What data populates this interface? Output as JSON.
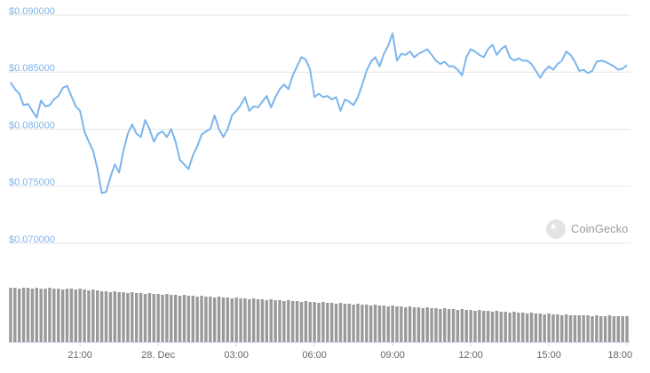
{
  "chart_data": {
    "type": "line",
    "color": "#7cb5ec",
    "volume_color": "#9a9a9a",
    "grid": true,
    "watermark": "CoinGecko",
    "xlim": [
      -344,
      1088
    ],
    "xticks": [
      {
        "value": -180,
        "label": "21:00"
      },
      {
        "value": 0,
        "label": "28. Dec"
      },
      {
        "value": 180,
        "label": "03:00"
      },
      {
        "value": 360,
        "label": "06:00"
      },
      {
        "value": 540,
        "label": "09:00"
      },
      {
        "value": 720,
        "label": "12:00"
      },
      {
        "value": 900,
        "label": "15:00"
      },
      {
        "value": 1080,
        "label": "18:00"
      }
    ],
    "ylim": [
      0.07,
      0.09
    ],
    "yticks": [
      {
        "value": 0.09,
        "label": "$0.090000"
      },
      {
        "value": 0.085,
        "label": "$0.085000"
      },
      {
        "value": 0.08,
        "label": "$0.080000"
      },
      {
        "value": 0.075,
        "label": "$0.075000"
      },
      {
        "value": 0.07,
        "label": "$0.070000"
      }
    ],
    "x": [
      -340,
      -330,
      -320,
      -310,
      -300,
      -290,
      -280,
      -270,
      -260,
      -250,
      -240,
      -230,
      -220,
      -210,
      -200,
      -190,
      -180,
      -170,
      -160,
      -150,
      -140,
      -130,
      -120,
      -110,
      -100,
      -90,
      -80,
      -70,
      -60,
      -50,
      -40,
      -30,
      -20,
      -10,
      0,
      10,
      20,
      30,
      40,
      50,
      60,
      70,
      80,
      90,
      100,
      110,
      120,
      130,
      140,
      150,
      160,
      170,
      180,
      190,
      200,
      210,
      220,
      230,
      240,
      250,
      260,
      270,
      280,
      290,
      300,
      310,
      320,
      330,
      340,
      350,
      360,
      370,
      380,
      390,
      400,
      410,
      420,
      430,
      440,
      450,
      460,
      470,
      480,
      490,
      500,
      510,
      520,
      530,
      540,
      550,
      560,
      570,
      580,
      590,
      600,
      610,
      620,
      630,
      640,
      650,
      660,
      670,
      680,
      690,
      700,
      710,
      720,
      730,
      740,
      750,
      760,
      770,
      780,
      790,
      800,
      810,
      820,
      830,
      840,
      850,
      860,
      870,
      880,
      890,
      900,
      910,
      920,
      930,
      940,
      950,
      960,
      970,
      980,
      990,
      1000,
      1010,
      1020,
      1030,
      1040,
      1050,
      1060,
      1070,
      1080
    ],
    "values": [
      0.0838,
      0.0832,
      0.0828,
      0.0818,
      0.0819,
      0.0813,
      0.0807,
      0.0822,
      0.0817,
      0.0818,
      0.0823,
      0.0826,
      0.0833,
      0.0835,
      0.0826,
      0.0817,
      0.0813,
      0.0795,
      0.0786,
      0.0778,
      0.0762,
      0.0741,
      0.0742,
      0.0755,
      0.0766,
      0.0759,
      0.0778,
      0.0793,
      0.0801,
      0.0793,
      0.079,
      0.0805,
      0.0797,
      0.0786,
      0.0793,
      0.0795,
      0.079,
      0.0797,
      0.0786,
      0.077,
      0.0766,
      0.0762,
      0.0774,
      0.0782,
      0.0792,
      0.0795,
      0.0797,
      0.0809,
      0.0797,
      0.079,
      0.0797,
      0.0809,
      0.0813,
      0.0818,
      0.0825,
      0.0813,
      0.0817,
      0.0816,
      0.0821,
      0.0826,
      0.0816,
      0.0825,
      0.0832,
      0.0836,
      0.0832,
      0.0844,
      0.0852,
      0.086,
      0.0858,
      0.0849,
      0.0825,
      0.0828,
      0.0825,
      0.0826,
      0.0823,
      0.0825,
      0.0813,
      0.0823,
      0.0821,
      0.0818,
      0.0825,
      0.0836,
      0.0848,
      0.0856,
      0.086,
      0.0852,
      0.0863,
      0.087,
      0.0881,
      0.0857,
      0.0863,
      0.0862,
      0.0865,
      0.086,
      0.0863,
      0.0865,
      0.0867,
      0.0862,
      0.0857,
      0.0854,
      0.0856,
      0.0852,
      0.0852,
      0.0849,
      0.0844,
      0.086,
      0.0867,
      0.0865,
      0.0862,
      0.086,
      0.0867,
      0.0871,
      0.0862,
      0.0867,
      0.087,
      0.086,
      0.0857,
      0.0859,
      0.0857,
      0.0857,
      0.0854,
      0.0848,
      0.0842,
      0.0848,
      0.0852,
      0.0849,
      0.0854,
      0.0857,
      0.0865,
      0.0862,
      0.0856,
      0.0848,
      0.0849,
      0.0846,
      0.0848,
      0.0856,
      0.0857,
      0.0856,
      0.0854,
      0.0852,
      0.0849,
      0.085,
      0.0853
    ],
    "volume": [
      61,
      61,
      60,
      61,
      61,
      60,
      61,
      60,
      60,
      61,
      60,
      60,
      59,
      60,
      60,
      59,
      60,
      59,
      58,
      59,
      58,
      57,
      57,
      56,
      57,
      56,
      56,
      55,
      56,
      55,
      55,
      54,
      55,
      54,
      54,
      53,
      54,
      53,
      53,
      52,
      53,
      52,
      52,
      51,
      52,
      51,
      51,
      50,
      51,
      50,
      50,
      49,
      50,
      49,
      49,
      48,
      49,
      48,
      48,
      47,
      48,
      47,
      47,
      46,
      47,
      46,
      46,
      45,
      46,
      45,
      45,
      44,
      45,
      44,
      44,
      43,
      44,
      43,
      43,
      42,
      43,
      42,
      42,
      41,
      42,
      41,
      41,
      40,
      41,
      40,
      40,
      39,
      40,
      39,
      39,
      38,
      39,
      38,
      38,
      37,
      38,
      37,
      37,
      36,
      37,
      36,
      36,
      35,
      36,
      35,
      35,
      34,
      35,
      34,
      34,
      33,
      34,
      33,
      33,
      32,
      33,
      32,
      32,
      31,
      32,
      31,
      31,
      30,
      31,
      30,
      30,
      30,
      30,
      30,
      29,
      30,
      29,
      29,
      30,
      29,
      29,
      29,
      29
    ]
  }
}
